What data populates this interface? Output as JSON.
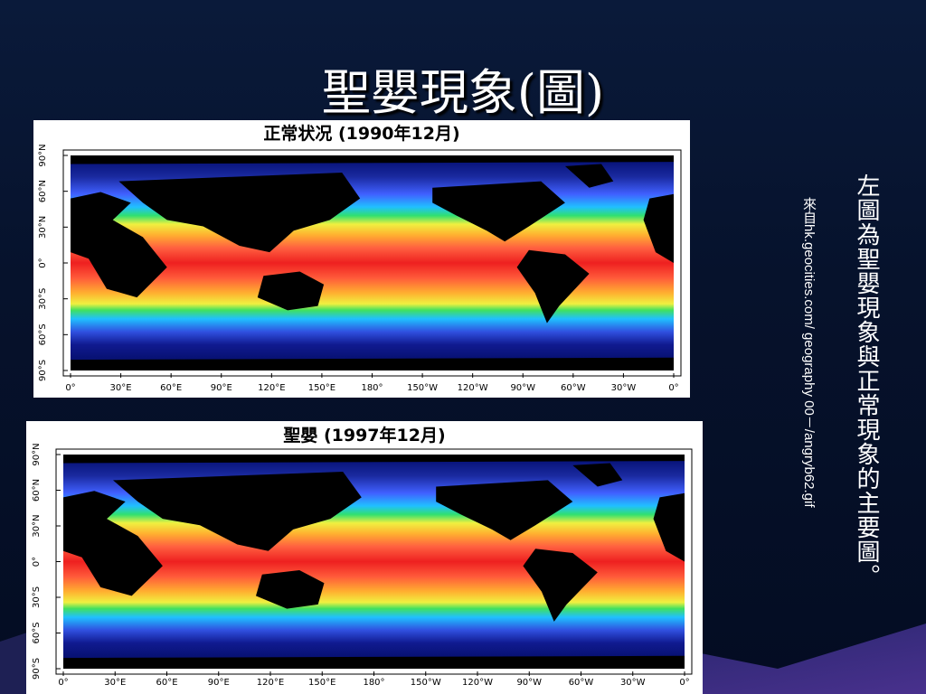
{
  "slide": {
    "title": "聖嬰現象(圖)",
    "maps": [
      {
        "title": "正常状况 (1990年12月)"
      },
      {
        "title": "聖嬰 (1997年12月)"
      }
    ],
    "latitude_labels": [
      "90°N",
      "60°N",
      "30°N",
      "0°",
      "30°S",
      "60°S",
      "90°S"
    ],
    "longitude_labels": [
      "0°",
      "30°E",
      "60°E",
      "90°E",
      "120°E",
      "150°E",
      "180°",
      "150°W",
      "120°W",
      "90°W",
      "60°W",
      "30°W",
      "0°"
    ],
    "caption": "左圖為聖嬰現象與正常現象的主要圖。",
    "source": "來自hk.geocities.com/ geography 00－/angryb62.gif"
  }
}
